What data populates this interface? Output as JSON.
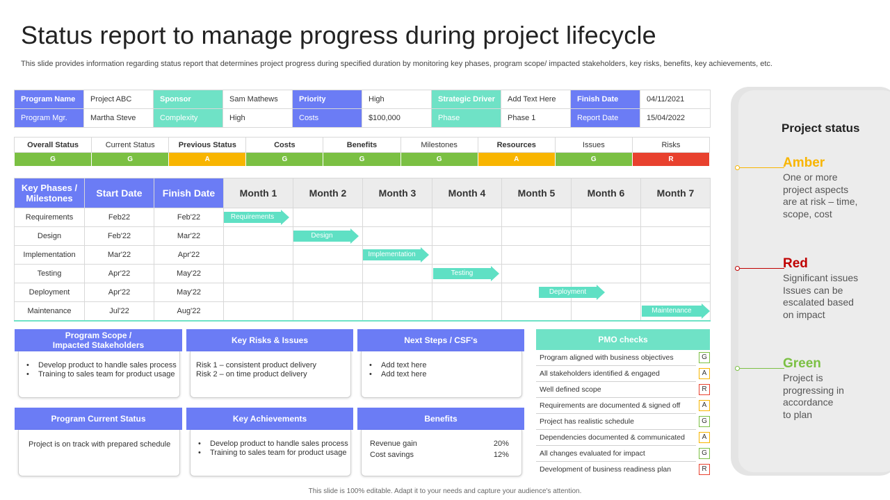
{
  "title": "Status report to manage progress during project lifecycle",
  "subtitle": "This slide provides information regarding status report that determines project progress during specified duration by monitoring key phases, program scope/ impacted stakeholders, key risks, benefits, key achievements, etc.",
  "info": {
    "row1": [
      "Program Name",
      "Project ABC",
      "Sponsor",
      "Sam Mathews",
      "Priority",
      "High",
      "Strategic Driver",
      "Add Text Here",
      "Finish Date",
      "04/11/2021"
    ],
    "row2": [
      "Program Mgr.",
      "Martha Steve",
      "Complexity",
      "High",
      "Costs",
      "$100,000",
      "Phase",
      "Phase 1",
      "Report Date",
      "15/04/2022"
    ]
  },
  "status": {
    "headers": [
      "Overall Status",
      "Current Status",
      "Previous Status",
      "Costs",
      "Benefits",
      "Milestones",
      "Resources",
      "Issues",
      "Risks"
    ],
    "values": [
      "G",
      "G",
      "A",
      "G",
      "G",
      "G",
      "A",
      "G",
      "R"
    ]
  },
  "gantt": {
    "headers": [
      "Key Phases / Milestones",
      "Start Date",
      "Finish Date",
      "Month 1",
      "Month 2",
      "Month 3",
      "Month 4",
      "Month 5",
      "Month 6",
      "Month 7"
    ],
    "rows": [
      {
        "phase": "Requirements",
        "start": "Feb22",
        "finish": "Feb'22",
        "bar": "Requirements"
      },
      {
        "phase": "Design",
        "start": "Feb'22",
        "finish": "Mar'22",
        "bar": "Design"
      },
      {
        "phase": "Implementation",
        "start": "Mar'22",
        "finish": "Apr'22",
        "bar": "Implementation"
      },
      {
        "phase": "Testing",
        "start": "Apr'22",
        "finish": "May'22",
        "bar": "Testing"
      },
      {
        "phase": "Deployment",
        "start": "Apr'22",
        "finish": "May'22",
        "bar": "Deployment"
      },
      {
        "phase": "Maintenance",
        "start": "Jul'22",
        "finish": "Aug'22",
        "bar": "Maintenance"
      }
    ]
  },
  "scope": {
    "title_1": "Program Scope /",
    "title_2": "Impacted Stakeholders",
    "items": [
      "Develop product to handle sales process",
      "Training to sales team for product usage"
    ]
  },
  "risks": {
    "title": "Key Risks & Issues",
    "items": [
      "Risk 1 – consistent product delivery",
      "Risk 2 – on time product delivery"
    ]
  },
  "next_steps": {
    "title": "Next Steps / CSF's",
    "items": [
      "Add text here",
      "Add text here"
    ]
  },
  "current_status": {
    "title": "Program Current Status",
    "text": "Project is on track with prepared schedule"
  },
  "achievements": {
    "title": "Key Achievements",
    "items": [
      "Develop product to handle sales process",
      "Training to sales team for product usage"
    ]
  },
  "benefits": {
    "title": "Benefits",
    "rows": [
      {
        "label": "Revenue gain",
        "value": "20%"
      },
      {
        "label": "Cost savings",
        "value": "12%"
      }
    ]
  },
  "pmo": {
    "title": "PMO checks",
    "rows": [
      {
        "label": "Program aligned with business objectives",
        "status": "G"
      },
      {
        "label": "All stakeholders identified & engaged",
        "status": "A"
      },
      {
        "label": "Well defined scope",
        "status": "R"
      },
      {
        "label": "Requirements are documented & signed off",
        "status": "A"
      },
      {
        "label": "Project has realistic schedule",
        "status": "G"
      },
      {
        "label": "Dependencies documented & communicated",
        "status": "A"
      },
      {
        "label": "All changes evaluated for impact",
        "status": "G"
      },
      {
        "label": "Development of business readiness plan",
        "status": "R"
      }
    ]
  },
  "legend": {
    "title": "Project status",
    "amber": {
      "name": "Amber",
      "desc": "One or more\nproject aspects\nare at risk – time,\nscope, cost",
      "color": "#f8b500"
    },
    "red": {
      "name": "Red",
      "desc": "Significant issues\nIssues can be\nescalated based\non impact",
      "color": "#c00000"
    },
    "green": {
      "name": "Green",
      "desc": "Project is\nprogressing in\naccordance\nto plan",
      "color": "#7bc043"
    }
  },
  "footer": "This slide is 100% editable. Adapt it to your needs and capture your audience's attention."
}
